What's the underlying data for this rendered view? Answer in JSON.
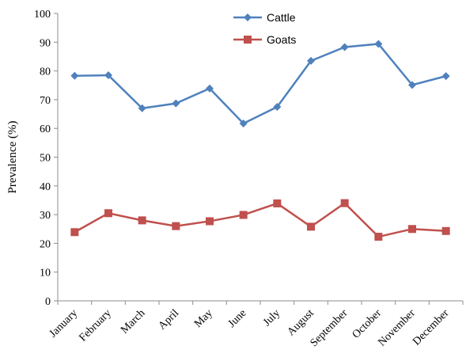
{
  "chart_data": {
    "type": "line",
    "categories": [
      "January",
      "February",
      "March",
      "April",
      "May",
      "June",
      "July",
      "August",
      "September",
      "October",
      "November",
      "December"
    ],
    "series": [
      {
        "name": "Cattle",
        "color": "#4f81bd",
        "marker": "diamond",
        "values": [
          78.3,
          78.5,
          67.0,
          68.7,
          73.9,
          61.7,
          67.5,
          83.5,
          88.3,
          89.4,
          75.1,
          78.2
        ]
      },
      {
        "name": "Goats",
        "color": "#c0504d",
        "marker": "square",
        "values": [
          23.9,
          30.5,
          28.0,
          26.0,
          27.7,
          29.9,
          33.9,
          25.8,
          34.0,
          22.3,
          25.0,
          24.3
        ]
      }
    ],
    "title": "",
    "xlabel": "",
    "ylabel": "Prevalence (%)",
    "ylim": [
      0,
      100
    ],
    "yticks": [
      0,
      10,
      20,
      30,
      40,
      50,
      60,
      70,
      80,
      90,
      100
    ],
    "grid": false,
    "legend_position": "top-center"
  }
}
